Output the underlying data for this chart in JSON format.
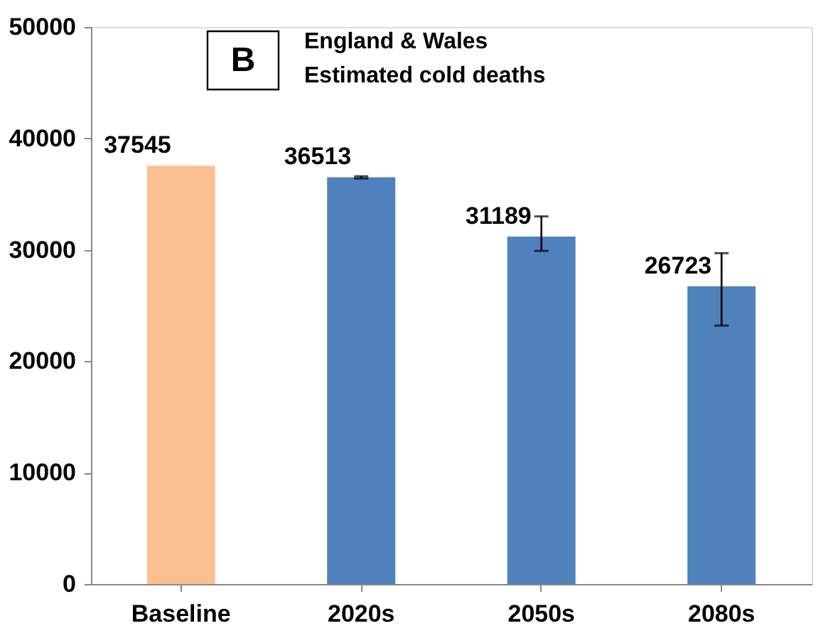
{
  "chart_data": {
    "type": "bar",
    "title": "England & Wales\nEstimated cold deaths",
    "annotations": [
      "B"
    ],
    "categories": [
      "Baseline",
      "2020s",
      "2050s",
      "2080s"
    ],
    "values": [
      37545,
      36513,
      31189,
      26723
    ],
    "colors": [
      "#fac090",
      "#4f81bd",
      "#4f81bd",
      "#4f81bd"
    ],
    "errors": [
      null,
      [
        36400,
        36600
      ],
      [
        29900,
        33000
      ],
      [
        23200,
        29700
      ]
    ],
    "data_labels": true,
    "ylim": [
      0,
      50000
    ],
    "yticks": [
      0,
      10000,
      20000,
      30000,
      40000,
      50000
    ],
    "grid": false
  }
}
